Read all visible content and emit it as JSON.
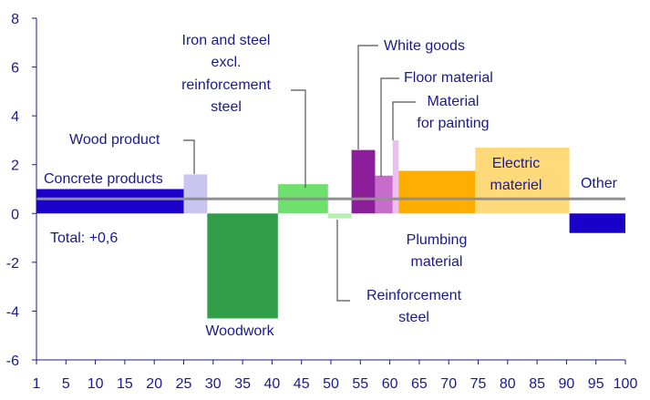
{
  "chart_data": {
    "type": "bar",
    "variable_width": true,
    "xlim": [
      0,
      100
    ],
    "ylim": [
      -6,
      8
    ],
    "x_ticks": [
      "1",
      "5",
      "10",
      "15",
      "20",
      "25",
      "30",
      "35",
      "40",
      "45",
      "50",
      "55",
      "60",
      "65",
      "70",
      "75",
      "80",
      "85",
      "90",
      "95",
      "100"
    ],
    "y_ticks": [
      "8",
      "6",
      "4",
      "2",
      "0",
      "-2",
      "-4",
      "-6"
    ],
    "segments": [
      {
        "name": "Concrete products",
        "x_start": 0,
        "x_end": 25,
        "value": 1.0,
        "color": "#1a00c8"
      },
      {
        "name": "Wood product",
        "x_start": 25,
        "x_end": 29,
        "value": 1.6,
        "color": "#c9c5ee"
      },
      {
        "name": "Woodwork",
        "x_start": 29,
        "x_end": 41,
        "value": -4.3,
        "color": "#339e48"
      },
      {
        "name": "Iron and steel excl. reinforcement steel",
        "x_start": 41,
        "x_end": 49.5,
        "value": 1.2,
        "color": "#6ee06e"
      },
      {
        "name": "Reinforcement steel",
        "x_start": 49.5,
        "x_end": 53.5,
        "value": -0.2,
        "color": "#b6f0b0"
      },
      {
        "name": "White goods",
        "x_start": 53.5,
        "x_end": 57.5,
        "value": 2.6,
        "color": "#8c1f99"
      },
      {
        "name": "Floor material",
        "x_start": 57.5,
        "x_end": 60.5,
        "value": 1.55,
        "color": "#c86ccc"
      },
      {
        "name": "Material for painting",
        "x_start": 60.5,
        "x_end": 61.5,
        "value": 3.0,
        "color": "#ecc0ec"
      },
      {
        "name": "Plumbing material",
        "x_start": 61.5,
        "x_end": 74.5,
        "value": 1.75,
        "color": "#ffae00"
      },
      {
        "name": "Electric materiel",
        "x_start": 74.5,
        "x_end": 90.5,
        "value": 2.7,
        "color": "#ffd97a"
      },
      {
        "name": "Other",
        "x_start": 90.5,
        "x_end": 100,
        "value": -0.8,
        "color": "#1a00c8"
      }
    ],
    "total_line": {
      "value": 0.6,
      "color": "#909090"
    },
    "labels": {
      "concrete": "Concrete products",
      "wood_product": "Wood product",
      "woodwork": "Woodwork",
      "iron_line1": "Iron and steel",
      "iron_line2": "excl.",
      "iron_line3": "reinforcement",
      "iron_line4": "steel",
      "reinf_line1": "Reinforcement",
      "reinf_line2": "steel",
      "white_goods": "White goods",
      "floor": "Floor material",
      "painting_line1": "Material",
      "painting_line2": "for painting",
      "plumbing_line1": "Plumbing",
      "plumbing_line2": "material",
      "electric_line1": "Electric",
      "electric_line2": "materiel",
      "other": "Other",
      "total": "Total: +0,6"
    },
    "colors": {
      "axis": "#1a1a8c",
      "text": "#1a1a8c",
      "leader": "#555555"
    }
  }
}
